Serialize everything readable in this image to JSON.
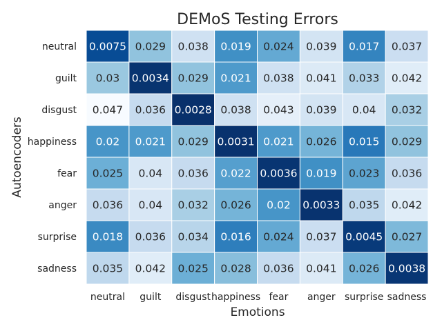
{
  "chart_data": {
    "type": "heatmap",
    "title": "DEMoS Testing Errors",
    "xlabel": "Emotions",
    "ylabel": "Autoencoders",
    "x_categories": [
      "neutral",
      "guilt",
      "disgust",
      "happiness",
      "fear",
      "anger",
      "surprise",
      "sadness"
    ],
    "y_categories": [
      "neutral",
      "guilt",
      "disgust",
      "happiness",
      "fear",
      "anger",
      "surprise",
      "sadness"
    ],
    "values": [
      [
        "0.0075",
        "0.029",
        "0.038",
        "0.019",
        "0.024",
        "0.039",
        "0.017",
        "0.037"
      ],
      [
        "0.03",
        "0.0034",
        "0.029",
        "0.021",
        "0.038",
        "0.041",
        "0.033",
        "0.042"
      ],
      [
        "0.047",
        "0.036",
        "0.0028",
        "0.038",
        "0.043",
        "0.039",
        "0.04",
        "0.032"
      ],
      [
        "0.02",
        "0.021",
        "0.029",
        "0.0031",
        "0.021",
        "0.026",
        "0.015",
        "0.029"
      ],
      [
        "0.025",
        "0.04",
        "0.036",
        "0.022",
        "0.0036",
        "0.019",
        "0.023",
        "0.036"
      ],
      [
        "0.036",
        "0.04",
        "0.032",
        "0.026",
        "0.02",
        "0.0033",
        "0.035",
        "0.042"
      ],
      [
        "0.018",
        "0.036",
        "0.034",
        "0.016",
        "0.024",
        "0.037",
        "0.0045",
        "0.027"
      ],
      [
        "0.035",
        "0.042",
        "0.025",
        "0.028",
        "0.036",
        "0.041",
        "0.026",
        "0.0038"
      ]
    ],
    "colormap": "Blues_r",
    "cell_border_color": "#ffffff",
    "colorbar": false
  }
}
